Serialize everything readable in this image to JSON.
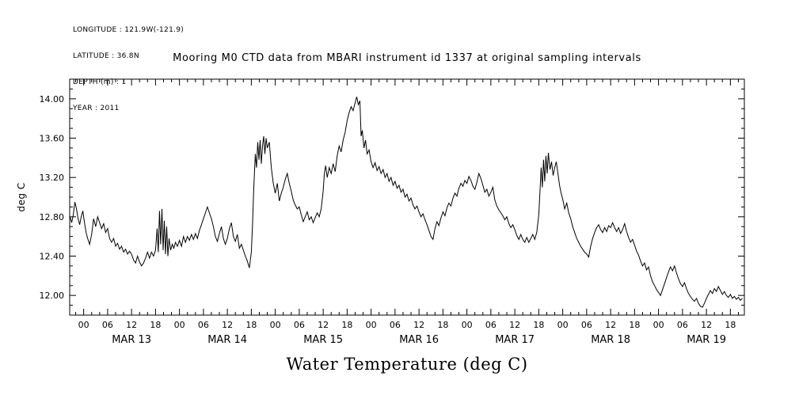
{
  "colors": {
    "background": "#ffffff",
    "foreground": "#000000"
  },
  "header": {
    "longitude_line": "LONGITUDE : 121.9W(-121.9)",
    "latitude_line": "LATITUDE : 36.8N",
    "depth_line": "DEPTH (m) : 1",
    "year_line": "YEAR : 2011"
  },
  "chart_data": {
    "type": "line",
    "title": "Mooring M0 CTD data from MBARI instrument id 1337 at original sampling intervals",
    "ylabel": "deg C",
    "xlabel": "Water Temperature (deg C)",
    "line_color": "#000000",
    "grid": false,
    "legend": null,
    "xlim": [
      -3.5,
      165.5
    ],
    "ylim": [
      11.8,
      14.2
    ],
    "x_hours_origin": "MAR 13 00:00",
    "x_major_step_hours": 6,
    "x_minor_step_hours": 2,
    "hour_tick_labels": [
      "00",
      "06",
      "12",
      "18"
    ],
    "day_labels": [
      "MAR 13",
      "MAR 14",
      "MAR 15",
      "MAR 16",
      "MAR 17",
      "MAR 18",
      "MAR 19"
    ],
    "y_major_ticks": [
      12.0,
      12.4,
      12.8,
      13.2,
      13.6,
      14.0
    ],
    "y_tick_labels": [
      "12.00",
      "12.40",
      "12.80",
      "13.20",
      "13.60",
      "14.00"
    ],
    "y_minor_step": 0.1,
    "points": [
      [
        -3.4,
        12.8
      ],
      [
        -3,
        12.74
      ],
      [
        -2.6,
        12.82
      ],
      [
        -2.2,
        12.95
      ],
      [
        -1.8,
        12.88
      ],
      [
        -1.4,
        12.78
      ],
      [
        -1,
        12.72
      ],
      [
        -0.6,
        12.8
      ],
      [
        -0.2,
        12.86
      ],
      [
        0.2,
        12.74
      ],
      [
        0.6,
        12.64
      ],
      [
        1,
        12.58
      ],
      [
        1.5,
        12.52
      ],
      [
        2,
        12.62
      ],
      [
        2.5,
        12.78
      ],
      [
        3,
        12.7
      ],
      [
        3.5,
        12.8
      ],
      [
        4,
        12.74
      ],
      [
        4.5,
        12.68
      ],
      [
        5,
        12.73
      ],
      [
        5.5,
        12.64
      ],
      [
        6,
        12.68
      ],
      [
        6.5,
        12.58
      ],
      [
        7,
        12.54
      ],
      [
        7.5,
        12.58
      ],
      [
        8,
        12.5
      ],
      [
        8.5,
        12.53
      ],
      [
        9,
        12.47
      ],
      [
        9.5,
        12.5
      ],
      [
        10,
        12.44
      ],
      [
        10.5,
        12.47
      ],
      [
        11,
        12.42
      ],
      [
        11.5,
        12.45
      ],
      [
        12,
        12.42
      ],
      [
        12.5,
        12.36
      ],
      [
        13,
        12.33
      ],
      [
        13.5,
        12.4
      ],
      [
        14,
        12.34
      ],
      [
        14.5,
        12.3
      ],
      [
        15,
        12.33
      ],
      [
        15.5,
        12.38
      ],
      [
        16,
        12.44
      ],
      [
        16.5,
        12.38
      ],
      [
        17,
        12.44
      ],
      [
        17.5,
        12.4
      ],
      [
        18,
        12.46
      ],
      [
        18.4,
        12.68
      ],
      [
        18.7,
        12.44
      ],
      [
        19,
        12.86
      ],
      [
        19.3,
        12.52
      ],
      [
        19.6,
        12.88
      ],
      [
        19.9,
        12.46
      ],
      [
        20.2,
        12.76
      ],
      [
        20.5,
        12.42
      ],
      [
        20.8,
        12.7
      ],
      [
        21.1,
        12.4
      ],
      [
        21.4,
        12.58
      ],
      [
        21.8,
        12.46
      ],
      [
        22.2,
        12.52
      ],
      [
        22.6,
        12.48
      ],
      [
        23,
        12.54
      ],
      [
        23.5,
        12.5
      ],
      [
        24,
        12.56
      ],
      [
        24.5,
        12.5
      ],
      [
        25,
        12.6
      ],
      [
        25.5,
        12.54
      ],
      [
        26,
        12.6
      ],
      [
        26.5,
        12.56
      ],
      [
        27,
        12.62
      ],
      [
        27.5,
        12.57
      ],
      [
        28,
        12.63
      ],
      [
        28.5,
        12.58
      ],
      [
        29,
        12.66
      ],
      [
        29.5,
        12.72
      ],
      [
        30,
        12.78
      ],
      [
        30.5,
        12.84
      ],
      [
        31,
        12.9
      ],
      [
        31.5,
        12.84
      ],
      [
        32,
        12.78
      ],
      [
        32.5,
        12.7
      ],
      [
        33,
        12.6
      ],
      [
        33.5,
        12.55
      ],
      [
        34,
        12.63
      ],
      [
        34.5,
        12.7
      ],
      [
        35,
        12.58
      ],
      [
        35.5,
        12.52
      ],
      [
        36,
        12.58
      ],
      [
        36.5,
        12.68
      ],
      [
        37,
        12.74
      ],
      [
        37.5,
        12.6
      ],
      [
        38,
        12.55
      ],
      [
        38.5,
        12.62
      ],
      [
        39,
        12.48
      ],
      [
        39.5,
        12.52
      ],
      [
        40,
        12.46
      ],
      [
        40.5,
        12.4
      ],
      [
        41,
        12.35
      ],
      [
        41.5,
        12.28
      ],
      [
        42,
        12.44
      ],
      [
        42.3,
        12.72
      ],
      [
        42.6,
        13.08
      ],
      [
        43,
        13.44
      ],
      [
        43.3,
        13.3
      ],
      [
        43.6,
        13.56
      ],
      [
        43.9,
        13.38
      ],
      [
        44.2,
        13.58
      ],
      [
        44.5,
        13.34
      ],
      [
        44.8,
        13.52
      ],
      [
        45.1,
        13.62
      ],
      [
        45.4,
        13.44
      ],
      [
        45.7,
        13.6
      ],
      [
        46,
        13.5
      ],
      [
        46.5,
        13.56
      ],
      [
        47,
        13.3
      ],
      [
        47.5,
        13.14
      ],
      [
        48,
        13.04
      ],
      [
        48.5,
        13.14
      ],
      [
        49,
        12.96
      ],
      [
        49.5,
        13.04
      ],
      [
        50,
        13.1
      ],
      [
        50.5,
        13.18
      ],
      [
        51,
        13.24
      ],
      [
        51.5,
        13.14
      ],
      [
        52,
        13.06
      ],
      [
        52.5,
        12.97
      ],
      [
        53,
        12.92
      ],
      [
        53.5,
        12.88
      ],
      [
        54,
        12.9
      ],
      [
        54.5,
        12.82
      ],
      [
        55,
        12.75
      ],
      [
        55.5,
        12.8
      ],
      [
        56,
        12.85
      ],
      [
        56.5,
        12.77
      ],
      [
        57,
        12.8
      ],
      [
        57.5,
        12.74
      ],
      [
        58,
        12.79
      ],
      [
        58.5,
        12.84
      ],
      [
        59,
        12.8
      ],
      [
        59.5,
        12.88
      ],
      [
        60,
        13.06
      ],
      [
        60.3,
        13.24
      ],
      [
        60.6,
        13.32
      ],
      [
        61,
        13.2
      ],
      [
        61.5,
        13.3
      ],
      [
        62,
        13.24
      ],
      [
        62.5,
        13.34
      ],
      [
        63,
        13.26
      ],
      [
        63.5,
        13.42
      ],
      [
        64,
        13.52
      ],
      [
        64.5,
        13.46
      ],
      [
        65,
        13.58
      ],
      [
        65.5,
        13.66
      ],
      [
        66,
        13.78
      ],
      [
        66.5,
        13.86
      ],
      [
        67,
        13.92
      ],
      [
        67.5,
        13.88
      ],
      [
        68,
        13.96
      ],
      [
        68.4,
        14.02
      ],
      [
        68.8,
        13.94
      ],
      [
        69.2,
        13.98
      ],
      [
        69.5,
        13.62
      ],
      [
        69.8,
        13.68
      ],
      [
        70.2,
        13.5
      ],
      [
        70.6,
        13.58
      ],
      [
        71,
        13.44
      ],
      [
        71.5,
        13.48
      ],
      [
        72,
        13.36
      ],
      [
        72.5,
        13.3
      ],
      [
        73,
        13.35
      ],
      [
        73.5,
        13.27
      ],
      [
        74,
        13.31
      ],
      [
        74.5,
        13.24
      ],
      [
        75,
        13.28
      ],
      [
        75.5,
        13.2
      ],
      [
        76,
        13.24
      ],
      [
        76.5,
        13.16
      ],
      [
        77,
        13.2
      ],
      [
        77.5,
        13.12
      ],
      [
        78,
        13.16
      ],
      [
        78.5,
        13.09
      ],
      [
        79,
        13.12
      ],
      [
        79.5,
        13.05
      ],
      [
        80,
        13.08
      ],
      [
        80.5,
        13.0
      ],
      [
        81,
        13.03
      ],
      [
        81.5,
        12.96
      ],
      [
        82,
        12.99
      ],
      [
        82.5,
        12.92
      ],
      [
        83,
        12.88
      ],
      [
        83.5,
        12.91
      ],
      [
        84,
        12.85
      ],
      [
        84.5,
        12.8
      ],
      [
        85,
        12.83
      ],
      [
        85.5,
        12.77
      ],
      [
        86,
        12.72
      ],
      [
        86.5,
        12.66
      ],
      [
        87,
        12.6
      ],
      [
        87.5,
        12.57
      ],
      [
        88,
        12.68
      ],
      [
        88.5,
        12.75
      ],
      [
        89,
        12.71
      ],
      [
        89.5,
        12.79
      ],
      [
        90,
        12.85
      ],
      [
        90.5,
        12.81
      ],
      [
        91,
        12.89
      ],
      [
        91.5,
        12.94
      ],
      [
        92,
        12.91
      ],
      [
        92.5,
        12.99
      ],
      [
        93,
        13.04
      ],
      [
        93.5,
        13.01
      ],
      [
        94,
        13.09
      ],
      [
        94.5,
        13.14
      ],
      [
        95,
        13.11
      ],
      [
        95.5,
        13.17
      ],
      [
        96,
        13.14
      ],
      [
        96.5,
        13.21
      ],
      [
        97,
        13.17
      ],
      [
        97.5,
        13.11
      ],
      [
        98,
        13.08
      ],
      [
        98.5,
        13.15
      ],
      [
        99,
        13.24
      ],
      [
        99.5,
        13.19
      ],
      [
        100,
        13.12
      ],
      [
        100.5,
        13.05
      ],
      [
        101,
        13.08
      ],
      [
        101.5,
        13.01
      ],
      [
        102,
        13.05
      ],
      [
        102.5,
        13.1
      ],
      [
        103,
        12.97
      ],
      [
        103.5,
        12.91
      ],
      [
        104,
        12.87
      ],
      [
        104.5,
        12.84
      ],
      [
        105,
        12.81
      ],
      [
        105.5,
        12.77
      ],
      [
        106,
        12.8
      ],
      [
        106.5,
        12.73
      ],
      [
        107,
        12.69
      ],
      [
        107.5,
        12.72
      ],
      [
        108,
        12.67
      ],
      [
        108.5,
        12.61
      ],
      [
        109,
        12.57
      ],
      [
        109.5,
        12.62
      ],
      [
        110,
        12.57
      ],
      [
        110.5,
        12.54
      ],
      [
        111,
        12.59
      ],
      [
        111.5,
        12.54
      ],
      [
        112,
        12.58
      ],
      [
        112.5,
        12.62
      ],
      [
        113,
        12.57
      ],
      [
        113.5,
        12.64
      ],
      [
        114,
        12.82
      ],
      [
        114.3,
        13.06
      ],
      [
        114.6,
        13.3
      ],
      [
        114.9,
        13.1
      ],
      [
        115.2,
        13.38
      ],
      [
        115.5,
        13.16
      ],
      [
        115.8,
        13.42
      ],
      [
        116.1,
        13.24
      ],
      [
        116.4,
        13.45
      ],
      [
        116.8,
        13.28
      ],
      [
        117.2,
        13.36
      ],
      [
        117.6,
        13.22
      ],
      [
        118,
        13.3
      ],
      [
        118.4,
        13.36
      ],
      [
        118.8,
        13.24
      ],
      [
        119.2,
        13.12
      ],
      [
        119.6,
        13.04
      ],
      [
        120,
        12.98
      ],
      [
        120.5,
        12.88
      ],
      [
        121,
        12.94
      ],
      [
        121.5,
        12.84
      ],
      [
        122,
        12.78
      ],
      [
        122.5,
        12.7
      ],
      [
        123,
        12.64
      ],
      [
        123.5,
        12.58
      ],
      [
        124,
        12.54
      ],
      [
        124.5,
        12.5
      ],
      [
        125,
        12.47
      ],
      [
        125.5,
        12.44
      ],
      [
        126,
        12.42
      ],
      [
        126.5,
        12.39
      ],
      [
        127,
        12.5
      ],
      [
        127.5,
        12.58
      ],
      [
        128,
        12.64
      ],
      [
        128.5,
        12.69
      ],
      [
        129,
        12.72
      ],
      [
        129.5,
        12.67
      ],
      [
        130,
        12.64
      ],
      [
        130.5,
        12.69
      ],
      [
        131,
        12.65
      ],
      [
        131.5,
        12.71
      ],
      [
        132,
        12.69
      ],
      [
        132.5,
        12.74
      ],
      [
        133,
        12.69
      ],
      [
        133.5,
        12.65
      ],
      [
        134,
        12.69
      ],
      [
        134.5,
        12.63
      ],
      [
        135,
        12.67
      ],
      [
        135.5,
        12.73
      ],
      [
        136,
        12.65
      ],
      [
        136.5,
        12.59
      ],
      [
        137,
        12.54
      ],
      [
        137.5,
        12.57
      ],
      [
        138,
        12.51
      ],
      [
        138.5,
        12.45
      ],
      [
        139,
        12.41
      ],
      [
        139.5,
        12.35
      ],
      [
        140,
        12.3
      ],
      [
        140.5,
        12.33
      ],
      [
        141,
        12.26
      ],
      [
        141.5,
        12.29
      ],
      [
        142,
        12.2
      ],
      [
        142.5,
        12.14
      ],
      [
        143,
        12.1
      ],
      [
        143.5,
        12.06
      ],
      [
        144,
        12.03
      ],
      [
        144.5,
        12.0
      ],
      [
        145,
        12.06
      ],
      [
        145.5,
        12.12
      ],
      [
        146,
        12.18
      ],
      [
        146.5,
        12.24
      ],
      [
        147,
        12.29
      ],
      [
        147.5,
        12.25
      ],
      [
        148,
        12.3
      ],
      [
        148.5,
        12.23
      ],
      [
        149,
        12.17
      ],
      [
        149.5,
        12.12
      ],
      [
        150,
        12.09
      ],
      [
        150.5,
        12.13
      ],
      [
        151,
        12.07
      ],
      [
        151.5,
        12.02
      ],
      [
        152,
        11.99
      ],
      [
        152.5,
        11.96
      ],
      [
        153,
        11.94
      ],
      [
        153.5,
        11.97
      ],
      [
        154,
        11.92
      ],
      [
        154.5,
        11.89
      ],
      [
        155,
        11.88
      ],
      [
        155.5,
        11.92
      ],
      [
        156,
        11.97
      ],
      [
        156.5,
        12.01
      ],
      [
        157,
        12.05
      ],
      [
        157.5,
        12.02
      ],
      [
        158,
        12.07
      ],
      [
        158.5,
        12.04
      ],
      [
        159,
        12.09
      ],
      [
        159.5,
        12.05
      ],
      [
        160,
        12.01
      ],
      [
        160.5,
        12.04
      ],
      [
        161,
        12.0
      ],
      [
        161.5,
        11.98
      ],
      [
        162,
        12.01
      ],
      [
        162.5,
        11.97
      ],
      [
        163,
        11.99
      ],
      [
        163.5,
        11.96
      ],
      [
        164,
        11.98
      ],
      [
        164.5,
        11.95
      ],
      [
        165,
        11.97
      ]
    ]
  }
}
